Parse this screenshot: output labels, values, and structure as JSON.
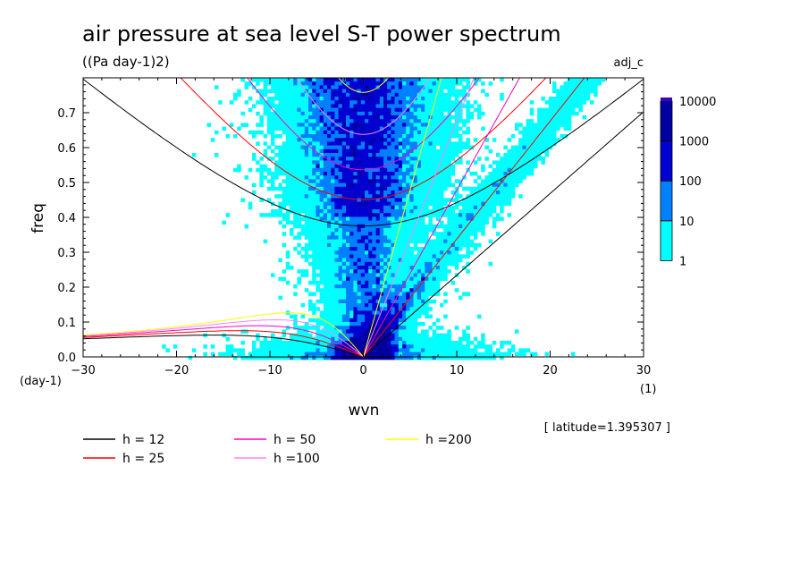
{
  "chart_data": {
    "type": "heatmap",
    "title": "air pressure at sea level S-T power spectrum",
    "subtitle": "((Pa day-1)2)",
    "variant_label": "adj_c",
    "xlabel": "wvn",
    "xunit": "(1)",
    "ylabel": "freq",
    "yunit": "(day-1)",
    "xlim": [
      -30,
      30
    ],
    "ylim": [
      0,
      0.8
    ],
    "xticks": [
      -30,
      -20,
      -10,
      0,
      10,
      20,
      30
    ],
    "xtick_labels": [
      "−30",
      "−20",
      "−10",
      "0",
      "10",
      "20",
      "30"
    ],
    "yticks": [
      0.0,
      0.1,
      0.2,
      0.3,
      0.4,
      0.5,
      0.6,
      0.7
    ],
    "ytick_labels": [
      "0.0",
      "0.1",
      "0.2",
      "0.3",
      "0.4",
      "0.5",
      "0.6",
      "0.7"
    ],
    "annotation": "[ latitude=1.395307 ]",
    "colorbar": {
      "levels": [
        "1",
        "10",
        "100",
        "1000",
        "10000"
      ],
      "colors": [
        "#00ffff",
        "#0080ff",
        "#0000d0",
        "#0000a0",
        "#4000c0"
      ]
    },
    "dispersion_curves": [
      {
        "label": "h = 12",
        "h": 12,
        "color": "#000000"
      },
      {
        "label": "h = 25",
        "h": 25,
        "color": "#ff0000"
      },
      {
        "label": "h = 50",
        "h": 50,
        "color": "#ff00c0"
      },
      {
        "label": "h =100",
        "h": 100,
        "color": "#ff80ff"
      },
      {
        "label": "h =200",
        "h": 200,
        "color": "#ffff00"
      }
    ]
  }
}
